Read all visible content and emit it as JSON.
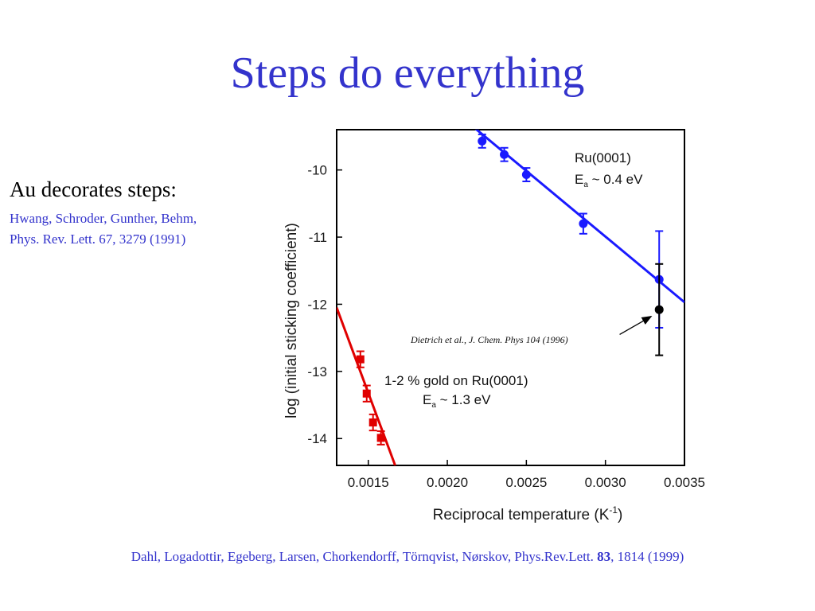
{
  "slide": {
    "title": "Steps do everything",
    "side_heading": "Au decorates steps:",
    "side_ref_line1": "Hwang, Schroder, Gunther, Behm,",
    "side_ref_line2": "Phys. Rev. Lett. 67, 3279 (1991)",
    "citation_prefix": "Dahl, Logadottir,  Egeberg, Larsen, Chorkendorff, Törnqvist, Nørskov, Phys.Rev.Lett. ",
    "citation_volume": "83",
    "citation_suffix": ", 1814 (1999)"
  },
  "colors": {
    "title": "#3333cc",
    "ru_series": "#1a1aff",
    "gold_series": "#e00000",
    "reference_point": "#000000"
  },
  "chart_data": {
    "type": "scatter",
    "xlabel": "Reciprocal temperature (K",
    "xlabel_sup": "-1",
    "xlabel_close": ")",
    "ylabel": "log (initial sticking coefficient)",
    "xlim": [
      0.0013,
      0.0035
    ],
    "ylim": [
      -14.4,
      -9.4
    ],
    "x_ticks": [
      "0.0015",
      "0.0020",
      "0.0025",
      "0.0030",
      "0.0035"
    ],
    "x_tick_values": [
      0.0015,
      0.002,
      0.0025,
      0.003,
      0.0035
    ],
    "y_ticks": [
      "-10",
      "-11",
      "-12",
      "-13",
      "-14"
    ],
    "y_tick_values": [
      -10,
      -11,
      -12,
      -13,
      -14
    ],
    "series": [
      {
        "key": "ru",
        "color": "#1a1aff",
        "marker": "circle",
        "points": [
          {
            "x": 0.00222,
            "y": -9.57,
            "err": 0.1
          },
          {
            "x": 0.00236,
            "y": -9.77,
            "err": 0.1
          },
          {
            "x": 0.0025,
            "y": -10.07,
            "err": 0.1
          },
          {
            "x": 0.00286,
            "y": -10.8,
            "err": 0.15
          },
          {
            "x": 0.00334,
            "y": -11.63,
            "err": 0.72
          }
        ],
        "fit": [
          [
            0.00215,
            -9.33
          ],
          [
            0.0035,
            -11.97
          ]
        ],
        "label_line1": "Ru(0001)",
        "label_line2_prefix": "E",
        "label_line2_sub": "a",
        "label_line2_suffix": "  ~ 0.4 eV"
      },
      {
        "key": "gold",
        "color": "#e00000",
        "marker": "square",
        "points": [
          {
            "x": 0.00145,
            "y": -12.82,
            "err": 0.12
          },
          {
            "x": 0.00149,
            "y": -13.33,
            "err": 0.12
          },
          {
            "x": 0.00153,
            "y": -13.76,
            "err": 0.12
          },
          {
            "x": 0.00158,
            "y": -13.99,
            "err": 0.1
          }
        ],
        "fit": [
          [
            0.0013,
            -12.05
          ],
          [
            0.00167,
            -14.4
          ]
        ],
        "label_line1": "1-2 % gold on Ru(0001)",
        "label_line2_prefix": "E",
        "label_line2_sub": "a",
        "label_line2_suffix": "  ~ 1.3 eV"
      },
      {
        "key": "reference",
        "color": "#000000",
        "marker": "circle",
        "points": [
          {
            "x": 0.00334,
            "y": -12.08,
            "err": 0.68
          }
        ]
      }
    ],
    "annotations": [
      {
        "text": "Dietrich et al., J. Chem. Phys 104 (1996)",
        "x_from": 0.00309,
        "y_from": -12.45,
        "x_to": 0.00329,
        "y_to": -12.18
      }
    ]
  }
}
